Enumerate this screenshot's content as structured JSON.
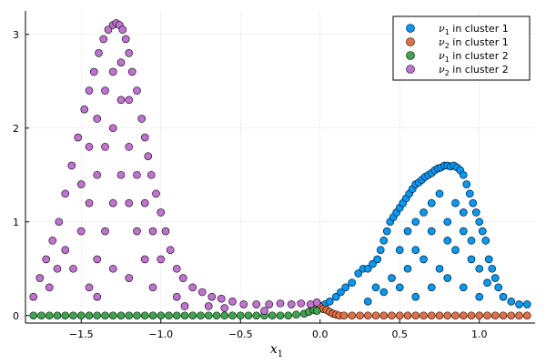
{
  "chart_data": {
    "type": "scatter",
    "title": "",
    "xlabel": "x",
    "xlabel_subscript": "1",
    "ylabel": "",
    "xlim": [
      -1.85,
      1.35
    ],
    "ylim": [
      -0.08,
      3.25
    ],
    "xticks": [
      -1.5,
      -1.0,
      -0.5,
      0.0,
      0.5,
      1.0
    ],
    "xtick_labels": [
      "−1.5",
      "−1.0",
      "−0.5",
      "0.0",
      "0.5",
      "1.0"
    ],
    "yticks": [
      0,
      1,
      2,
      3
    ],
    "ytick_labels": [
      "0",
      "1",
      "2",
      "3"
    ],
    "grid": true,
    "legend_position": "top-right",
    "series": [
      {
        "name": "ν1 in cluster 1",
        "legend_symbol": "ν",
        "legend_sub": "1",
        "legend_rest": " in cluster 1",
        "color": "#009AFA",
        "points": [
          [
            0.0,
            0.1
          ],
          [
            0.03,
            0.12
          ],
          [
            0.06,
            0.15
          ],
          [
            0.1,
            0.2
          ],
          [
            0.13,
            0.25
          ],
          [
            0.16,
            0.3
          ],
          [
            0.2,
            0.35
          ],
          [
            0.24,
            0.45
          ],
          [
            0.27,
            0.5
          ],
          [
            0.3,
            0.5
          ],
          [
            0.33,
            0.55
          ],
          [
            0.36,
            0.6
          ],
          [
            0.38,
            0.7
          ],
          [
            0.4,
            0.8
          ],
          [
            0.42,
            0.9
          ],
          [
            0.44,
            1.0
          ],
          [
            0.46,
            1.05
          ],
          [
            0.48,
            1.1
          ],
          [
            0.5,
            1.15
          ],
          [
            0.52,
            1.2
          ],
          [
            0.54,
            1.25
          ],
          [
            0.56,
            1.3
          ],
          [
            0.58,
            1.35
          ],
          [
            0.6,
            1.4
          ],
          [
            0.62,
            1.42
          ],
          [
            0.64,
            1.45
          ],
          [
            0.66,
            1.48
          ],
          [
            0.68,
            1.5
          ],
          [
            0.7,
            1.52
          ],
          [
            0.72,
            1.55
          ],
          [
            0.74,
            1.57
          ],
          [
            0.76,
            1.58
          ],
          [
            0.78,
            1.6
          ],
          [
            0.8,
            1.6
          ],
          [
            0.82,
            1.59
          ],
          [
            0.84,
            1.6
          ],
          [
            0.86,
            1.58
          ],
          [
            0.88,
            1.55
          ],
          [
            0.9,
            1.5
          ],
          [
            0.92,
            1.4
          ],
          [
            0.94,
            1.3
          ],
          [
            0.96,
            1.2
          ],
          [
            0.98,
            1.1
          ],
          [
            1.0,
            1.0
          ],
          [
            1.02,
            0.9
          ],
          [
            1.04,
            0.8
          ],
          [
            1.06,
            0.6
          ],
          [
            1.08,
            0.5
          ],
          [
            1.1,
            0.4
          ],
          [
            1.12,
            0.3
          ],
          [
            1.15,
            0.2
          ],
          [
            1.2,
            0.15
          ],
          [
            1.25,
            0.12
          ],
          [
            1.3,
            0.12
          ],
          [
            0.3,
            0.15
          ],
          [
            0.35,
            0.3
          ],
          [
            0.4,
            0.25
          ],
          [
            0.45,
            0.4
          ],
          [
            0.5,
            0.3
          ],
          [
            0.55,
            0.5
          ],
          [
            0.6,
            0.2
          ],
          [
            0.65,
            0.6
          ],
          [
            0.7,
            0.3
          ],
          [
            0.75,
            0.5
          ],
          [
            0.8,
            0.4
          ],
          [
            0.85,
            0.7
          ],
          [
            0.9,
            0.3
          ],
          [
            0.95,
            0.6
          ],
          [
            1.0,
            0.2
          ],
          [
            1.05,
            0.35
          ],
          [
            0.5,
            0.7
          ],
          [
            0.55,
            0.9
          ],
          [
            0.6,
            1.0
          ],
          [
            0.65,
            1.1
          ],
          [
            0.7,
            1.2
          ],
          [
            0.75,
            1.3
          ],
          [
            0.8,
            1.0
          ],
          [
            0.85,
            1.2
          ],
          [
            0.9,
            0.9
          ],
          [
            0.95,
            0.8
          ],
          [
            1.0,
            0.5
          ],
          [
            0.6,
            0.7
          ],
          [
            0.7,
            0.9
          ],
          [
            0.8,
            0.8
          ],
          [
            0.9,
            1.1
          ]
        ]
      },
      {
        "name": "ν2 in cluster 1",
        "legend_symbol": "ν",
        "legend_sub": "2",
        "legend_rest": " in cluster 1",
        "color": "#E26F46",
        "points": [
          [
            0.0,
            0.09
          ],
          [
            0.02,
            0.07
          ],
          [
            0.04,
            0.06
          ],
          [
            0.06,
            0.04
          ],
          [
            0.08,
            0.02
          ],
          [
            0.1,
            0.01
          ],
          [
            0.12,
            0.0
          ],
          [
            0.15,
            0.0
          ],
          [
            0.2,
            0.0
          ],
          [
            0.25,
            0.0
          ],
          [
            0.3,
            0.0
          ],
          [
            0.35,
            0.0
          ],
          [
            0.4,
            0.0
          ],
          [
            0.45,
            0.0
          ],
          [
            0.5,
            0.0
          ],
          [
            0.55,
            0.0
          ],
          [
            0.6,
            0.0
          ],
          [
            0.65,
            0.0
          ],
          [
            0.7,
            0.0
          ],
          [
            0.75,
            0.0
          ],
          [
            0.8,
            0.0
          ],
          [
            0.85,
            0.0
          ],
          [
            0.9,
            0.0
          ],
          [
            0.95,
            0.0
          ],
          [
            1.0,
            0.0
          ],
          [
            1.05,
            0.0
          ],
          [
            1.1,
            0.0
          ],
          [
            1.15,
            0.0
          ],
          [
            1.2,
            0.0
          ],
          [
            1.25,
            0.0
          ],
          [
            1.3,
            0.0
          ]
        ]
      },
      {
        "name": "ν1 in cluster 2",
        "legend_symbol": "ν",
        "legend_sub": "1",
        "legend_rest": " in cluster 2",
        "color": "#3EA44E",
        "points": [
          [
            -1.8,
            0.0
          ],
          [
            -1.75,
            0.0
          ],
          [
            -1.7,
            0.0
          ],
          [
            -1.65,
            0.0
          ],
          [
            -1.6,
            0.0
          ],
          [
            -1.55,
            0.0
          ],
          [
            -1.5,
            0.0
          ],
          [
            -1.45,
            0.0
          ],
          [
            -1.4,
            0.0
          ],
          [
            -1.35,
            0.0
          ],
          [
            -1.3,
            0.0
          ],
          [
            -1.25,
            0.0
          ],
          [
            -1.2,
            0.0
          ],
          [
            -1.15,
            0.0
          ],
          [
            -1.1,
            0.0
          ],
          [
            -1.05,
            0.0
          ],
          [
            -1.0,
            0.0
          ],
          [
            -0.95,
            0.0
          ],
          [
            -0.9,
            0.0
          ],
          [
            -0.85,
            0.0
          ],
          [
            -0.8,
            0.0
          ],
          [
            -0.75,
            0.0
          ],
          [
            -0.7,
            0.0
          ],
          [
            -0.65,
            0.0
          ],
          [
            -0.6,
            0.0
          ],
          [
            -0.55,
            0.0
          ],
          [
            -0.5,
            0.0
          ],
          [
            -0.45,
            0.0
          ],
          [
            -0.4,
            0.0
          ],
          [
            -0.35,
            0.0
          ],
          [
            -0.3,
            0.0
          ],
          [
            -0.25,
            0.0
          ],
          [
            -0.2,
            0.0
          ],
          [
            -0.15,
            0.01
          ],
          [
            -0.1,
            0.02
          ],
          [
            -0.07,
            0.04
          ],
          [
            -0.04,
            0.06
          ],
          [
            -0.02,
            0.05
          ]
        ]
      },
      {
        "name": "ν2 in cluster 2",
        "legend_symbol": "ν",
        "legend_sub": "2",
        "legend_rest": " in cluster 2",
        "color": "#C271D2",
        "points": [
          [
            -1.8,
            0.2
          ],
          [
            -1.76,
            0.4
          ],
          [
            -1.72,
            0.6
          ],
          [
            -1.68,
            0.8
          ],
          [
            -1.64,
            1.0
          ],
          [
            -1.6,
            1.3
          ],
          [
            -1.56,
            1.6
          ],
          [
            -1.52,
            1.9
          ],
          [
            -1.48,
            2.2
          ],
          [
            -1.45,
            2.4
          ],
          [
            -1.42,
            2.6
          ],
          [
            -1.39,
            2.8
          ],
          [
            -1.36,
            2.95
          ],
          [
            -1.33,
            3.05
          ],
          [
            -1.3,
            3.1
          ],
          [
            -1.28,
            3.12
          ],
          [
            -1.26,
            3.1
          ],
          [
            -1.24,
            3.05
          ],
          [
            -1.22,
            2.95
          ],
          [
            -1.2,
            2.8
          ],
          [
            -1.18,
            2.6
          ],
          [
            -1.15,
            2.4
          ],
          [
            -1.12,
            2.1
          ],
          [
            -1.1,
            1.9
          ],
          [
            -1.08,
            1.7
          ],
          [
            -1.06,
            1.5
          ],
          [
            -1.03,
            1.3
          ],
          [
            -1.0,
            1.1
          ],
          [
            -0.97,
            0.9
          ],
          [
            -0.94,
            0.7
          ],
          [
            -0.9,
            0.5
          ],
          [
            -0.86,
            0.4
          ],
          [
            -0.8,
            0.3
          ],
          [
            -0.74,
            0.25
          ],
          [
            -0.68,
            0.2
          ],
          [
            -0.62,
            0.18
          ],
          [
            -0.55,
            0.15
          ],
          [
            -0.48,
            0.12
          ],
          [
            -0.4,
            0.12
          ],
          [
            -0.32,
            0.12
          ],
          [
            -0.25,
            0.13
          ],
          [
            -0.18,
            0.12
          ],
          [
            -0.12,
            0.13
          ],
          [
            -0.06,
            0.12
          ],
          [
            -0.02,
            0.14
          ],
          [
            -1.7,
            0.3
          ],
          [
            -1.65,
            0.5
          ],
          [
            -1.6,
            0.7
          ],
          [
            -1.55,
            0.5
          ],
          [
            -1.5,
            0.9
          ],
          [
            -1.45,
            1.2
          ],
          [
            -1.4,
            1.5
          ],
          [
            -1.35,
            1.8
          ],
          [
            -1.3,
            2.0
          ],
          [
            -1.25,
            2.3
          ],
          [
            -1.2,
            1.8
          ],
          [
            -1.15,
            1.5
          ],
          [
            -1.1,
            1.2
          ],
          [
            -1.05,
            0.9
          ],
          [
            -1.0,
            0.6
          ],
          [
            -1.45,
            0.3
          ],
          [
            -1.4,
            0.6
          ],
          [
            -1.35,
            0.9
          ],
          [
            -1.3,
            1.2
          ],
          [
            -1.25,
            1.5
          ],
          [
            -1.2,
            1.2
          ],
          [
            -1.15,
            0.9
          ],
          [
            -1.1,
            0.6
          ],
          [
            -1.05,
            0.3
          ],
          [
            -1.5,
            1.4
          ],
          [
            -1.45,
            1.8
          ],
          [
            -1.4,
            2.1
          ],
          [
            -1.35,
            2.4
          ],
          [
            -1.3,
            2.6
          ],
          [
            -1.25,
            2.7
          ],
          [
            -1.2,
            2.3
          ],
          [
            -1.3,
            0.5
          ],
          [
            -1.2,
            0.4
          ],
          [
            -1.4,
            0.2
          ],
          [
            -0.9,
            0.2
          ],
          [
            -0.85,
            0.1
          ],
          [
            -0.7,
            0.1
          ],
          [
            -0.6,
            0.08
          ],
          [
            -0.35,
            0.05
          ]
        ]
      }
    ]
  }
}
